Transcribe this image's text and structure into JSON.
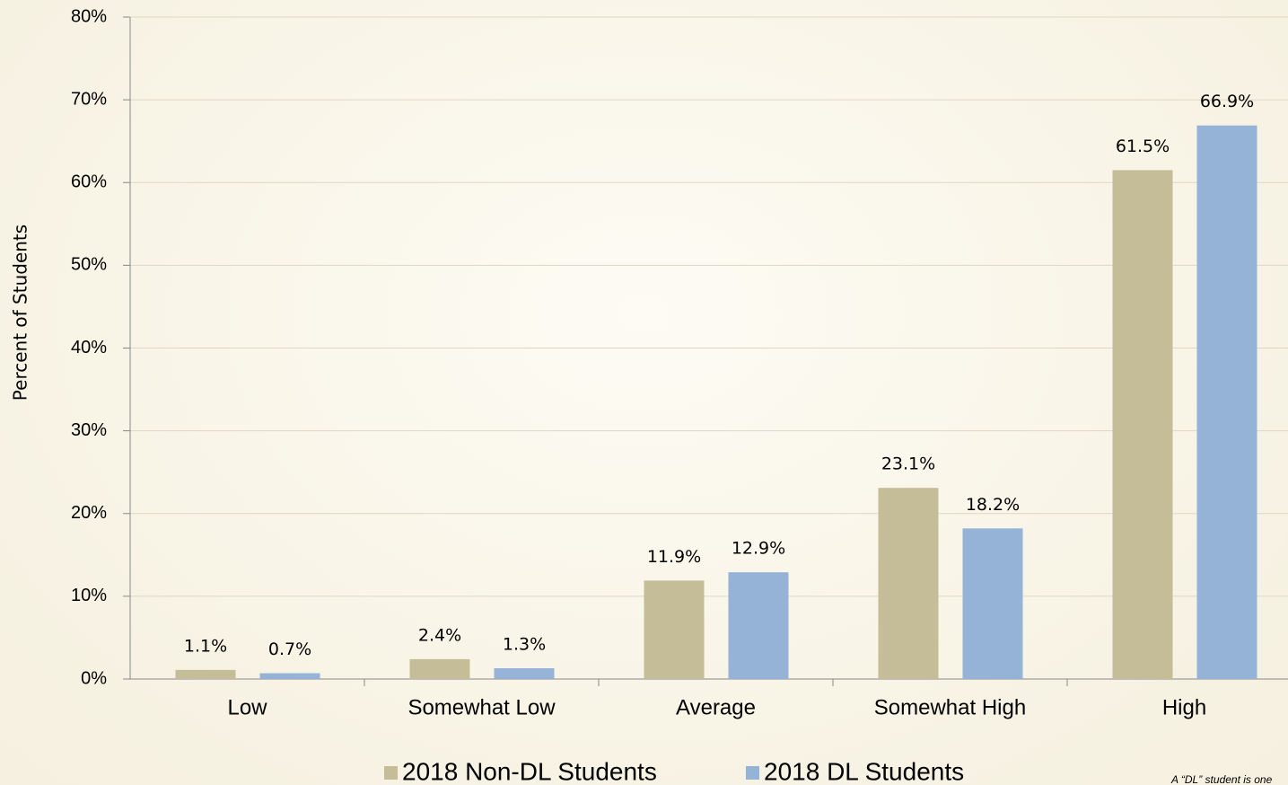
{
  "chart_data": {
    "type": "bar",
    "y_label": "Percent of Students",
    "categories": [
      "Low",
      "Somewhat Low",
      "Average",
      "Somewhat High",
      "High"
    ],
    "series": [
      {
        "name": "2018 Non-DL Students",
        "color": "#c4bd97",
        "values": [
          1.1,
          2.4,
          11.9,
          23.1,
          61.5
        ],
        "value_labels": [
          "1.1%",
          "2.4%",
          "11.9%",
          "23.1%",
          "61.5%"
        ]
      },
      {
        "name": "2018 DL Students",
        "color": "#95b3d7",
        "values": [
          0.7,
          1.3,
          12.9,
          18.2,
          66.9
        ],
        "value_labels": [
          "0.7%",
          "1.3%",
          "12.9%",
          "18.2%",
          "66.9%"
        ]
      }
    ],
    "ylim": [
      0,
      80
    ],
    "yticks": [
      {
        "value": 0,
        "label": "0%"
      },
      {
        "value": 10,
        "label": "10%"
      },
      {
        "value": 20,
        "label": "20%"
      },
      {
        "value": 30,
        "label": "30%"
      },
      {
        "value": 40,
        "label": "40%"
      },
      {
        "value": 50,
        "label": "50%"
      },
      {
        "value": 60,
        "label": "60%"
      },
      {
        "value": 70,
        "label": "70%"
      },
      {
        "value": 80,
        "label": "80%"
      }
    ],
    "grid": true,
    "legend": "bottom",
    "note": "A “DL” student is one"
  }
}
